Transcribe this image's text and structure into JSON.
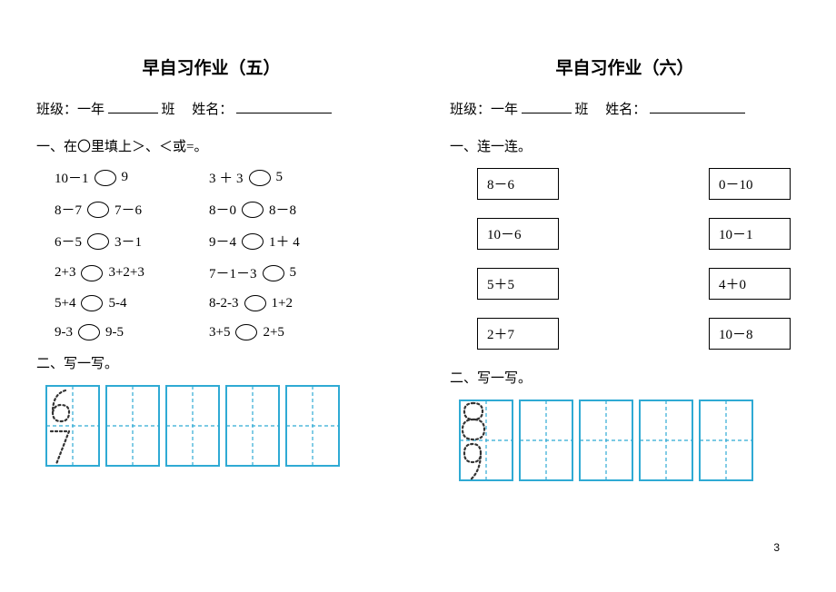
{
  "left": {
    "title": "早自习作业（五）",
    "info": {
      "grade_lbl": "班级：一年",
      "class_lbl": "班",
      "name_lbl": "姓名："
    },
    "s1": {
      "head": "一、在〇里填上＞、＜或=。",
      "rows": [
        {
          "l1": "10－1",
          "l2": "9",
          "r1": "3 ＋ 3",
          "r2": "5"
        },
        {
          "l1": "8－7",
          "l2": "7－6",
          "r1": "8－0",
          "r2": "8－8"
        },
        {
          "l1": "6－5",
          "l2": "3－1",
          "r1": "9－4",
          "r2": "1＋ 4"
        },
        {
          "l1": "2+3",
          "l2": "3+2+3",
          "r1": "7－1－3",
          "r2": "5"
        },
        {
          "l1": "5+4",
          "l2": "5-4",
          "r1": "8-2-3",
          "r2": "1+2"
        },
        {
          "l1": "9-3",
          "l2": "9-5",
          "r1": "3+5",
          "r2": "2+5"
        }
      ]
    },
    "s2": {
      "head": "二、写一写。"
    },
    "trace": {
      "box_color": "#2faad4",
      "dash_color": "#2faad4",
      "digit_color": "#333",
      "cells": 5,
      "digits": [
        "6",
        "7"
      ]
    }
  },
  "right": {
    "title": "早自习作业（六）",
    "info": {
      "grade_lbl": "班级：一年",
      "class_lbl": "班",
      "name_lbl": "姓名："
    },
    "s1": {
      "head": "一、连一连。",
      "pairs": [
        {
          "a": "8－6",
          "b": "0－10"
        },
        {
          "a": "10－6",
          "b": "10－1"
        },
        {
          "a": "5＋5",
          "b": "4＋0"
        },
        {
          "a": "2＋7",
          "b": "10－8"
        }
      ]
    },
    "s2": {
      "head": "二、写一写。"
    },
    "trace": {
      "box_color": "#2faad4",
      "dash_color": "#2faad4",
      "digit_color": "#333",
      "cells": 5,
      "digits": [
        "8",
        "9"
      ]
    }
  },
  "page_number": "3"
}
